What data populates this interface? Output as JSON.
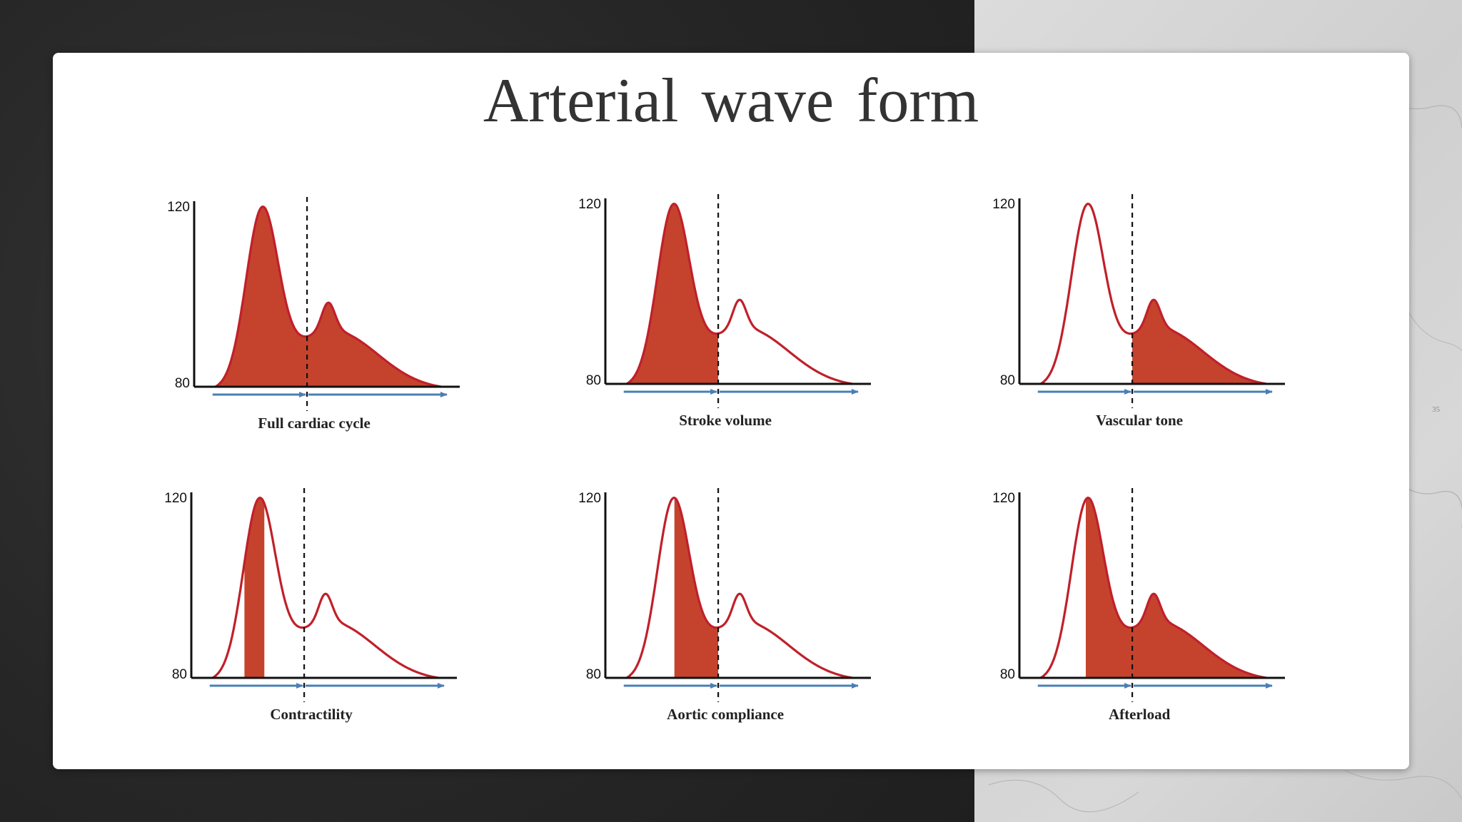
{
  "slide": {
    "title": "Arterial wave form",
    "page_number": "35"
  },
  "y_axis": {
    "top_label": "120",
    "bottom_label": "80"
  },
  "colors": {
    "fill": "#c5432d",
    "curve": "#c0202a",
    "arrow": "#4a7fb5",
    "axis": "#111111"
  },
  "panels": [
    {
      "caption": "Full cardiac cycle",
      "shading": "full-cycle"
    },
    {
      "caption": "Stroke volume",
      "shading": "systolic-area"
    },
    {
      "caption": "Vascular tone",
      "shading": "diastolic-area"
    },
    {
      "caption": "Contractility",
      "shading": "upstroke-slope"
    },
    {
      "caption": "Aortic compliance",
      "shading": "systolic-decline"
    },
    {
      "caption": "Afterload",
      "shading": "post-peak-area"
    }
  ]
}
